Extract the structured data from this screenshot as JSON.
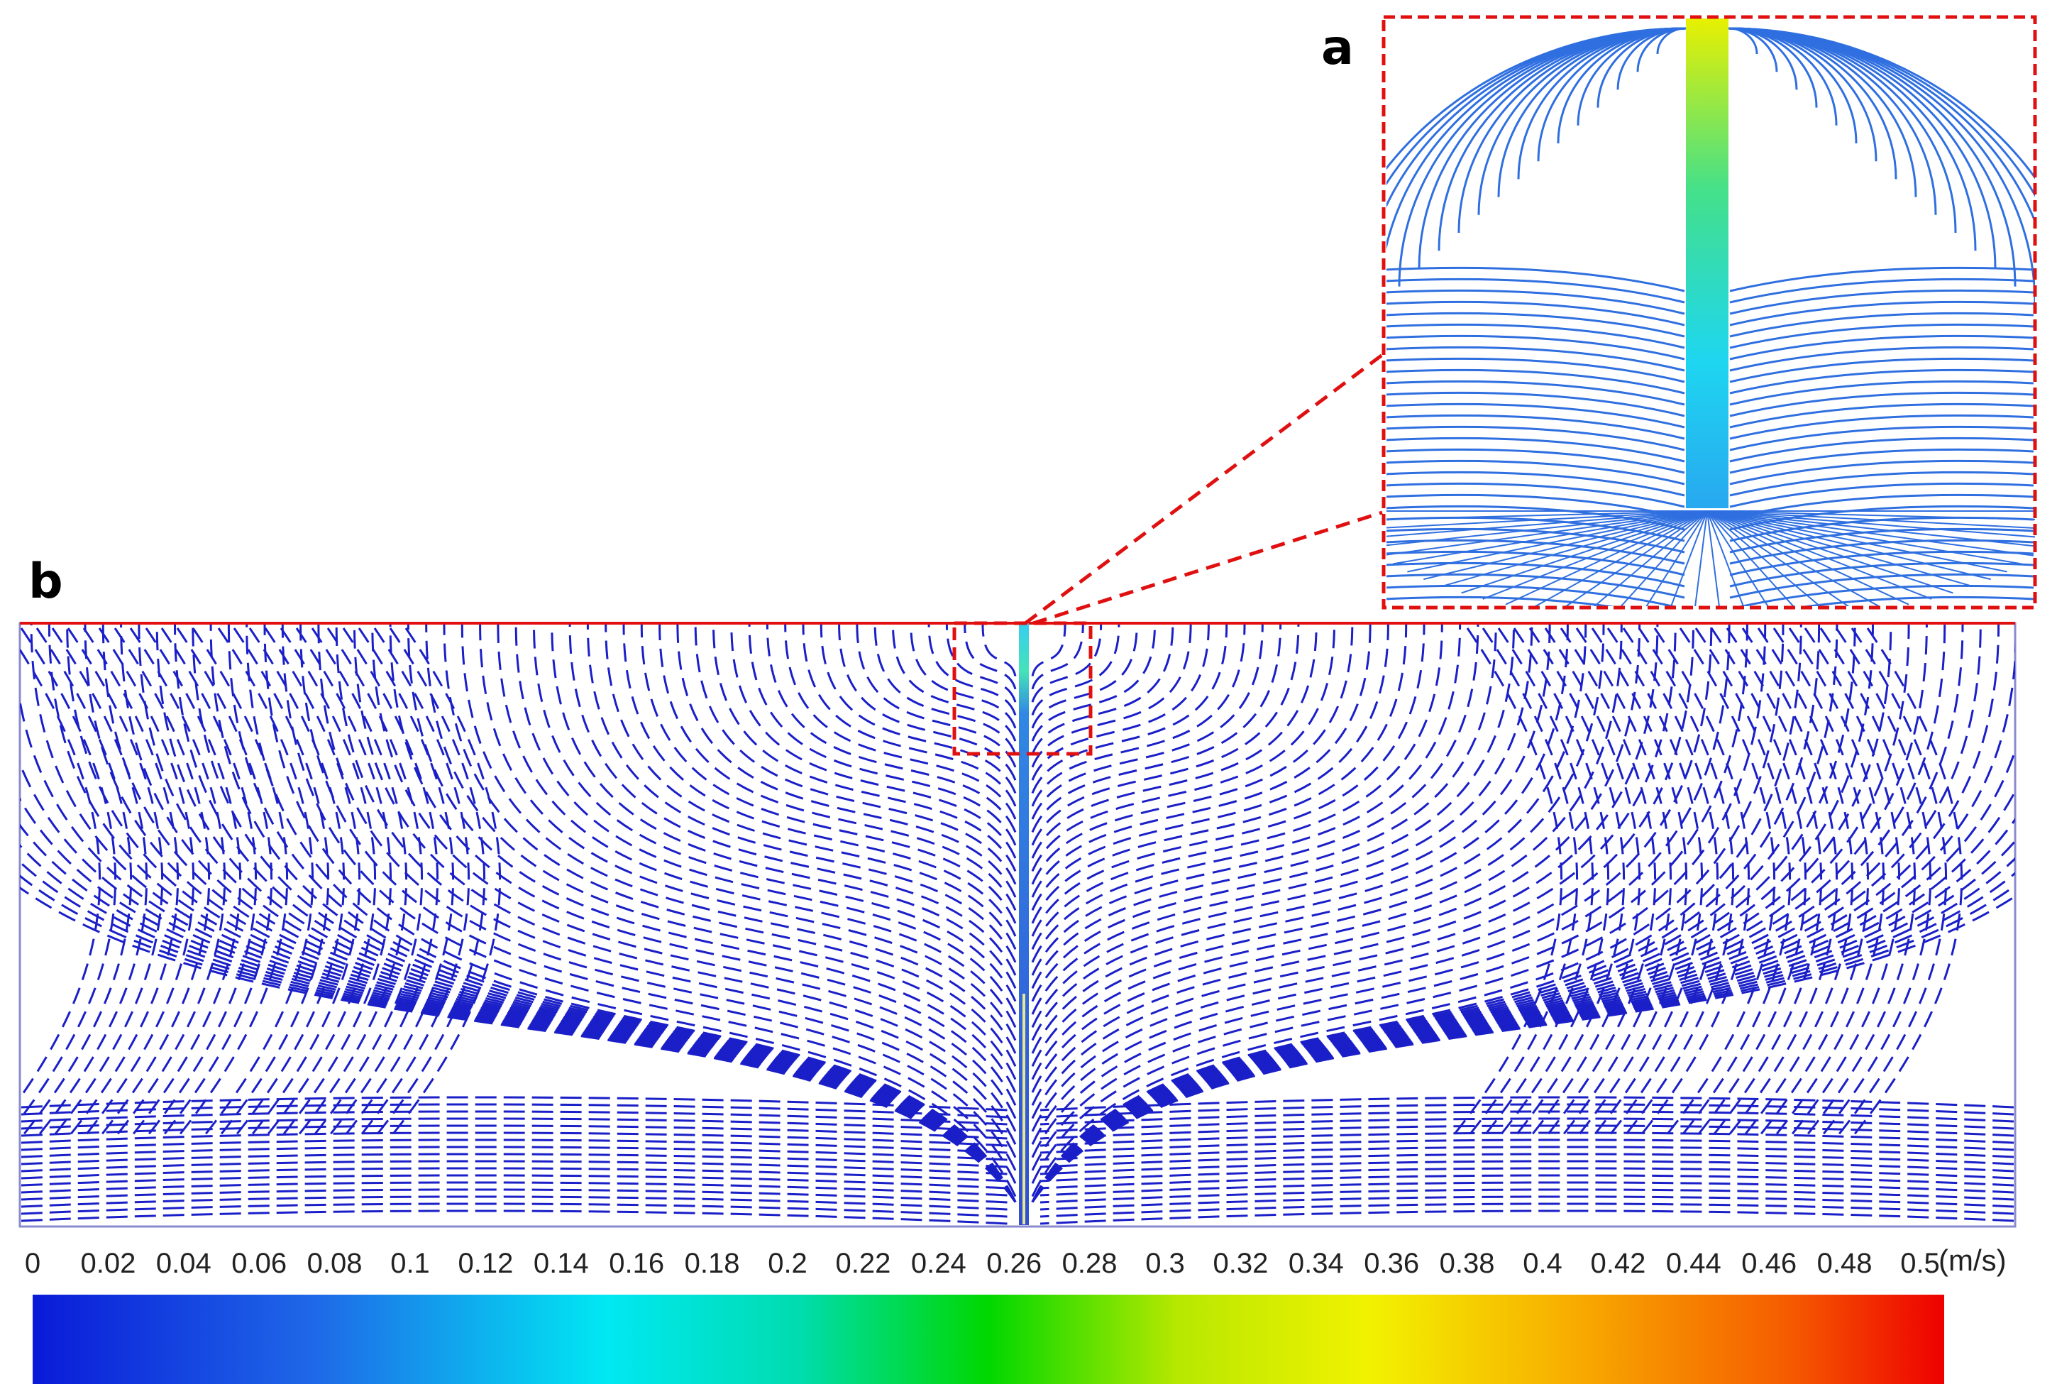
{
  "panels": {
    "inset_label": "a",
    "main_label": "b"
  },
  "colorbar": {
    "ticks": [
      "0",
      "0.02",
      "0.04",
      "0.06",
      "0.08",
      "0.1",
      "0.12",
      "0.14",
      "0.16",
      "0.18",
      "0.2",
      "0.22",
      "0.24",
      "0.26",
      "0.28",
      "0.3",
      "0.32",
      "0.34",
      "0.36",
      "0.38",
      "0.4",
      "0.42",
      "0.44",
      "0.46",
      "0.48",
      "0.5"
    ],
    "unit": "(m/s)",
    "min": 0,
    "max": 0.5,
    "colors": [
      "#0a1ad8",
      "#00e8f2",
      "#00d800",
      "#f2f200",
      "#ee0000"
    ]
  },
  "colors": {
    "streamline": "#1a1fc8",
    "inset_streamline": "#2f6fe0",
    "jet_core": "#e8f000",
    "highlight_box": "#e01010",
    "frame": "#8a8acf"
  }
}
